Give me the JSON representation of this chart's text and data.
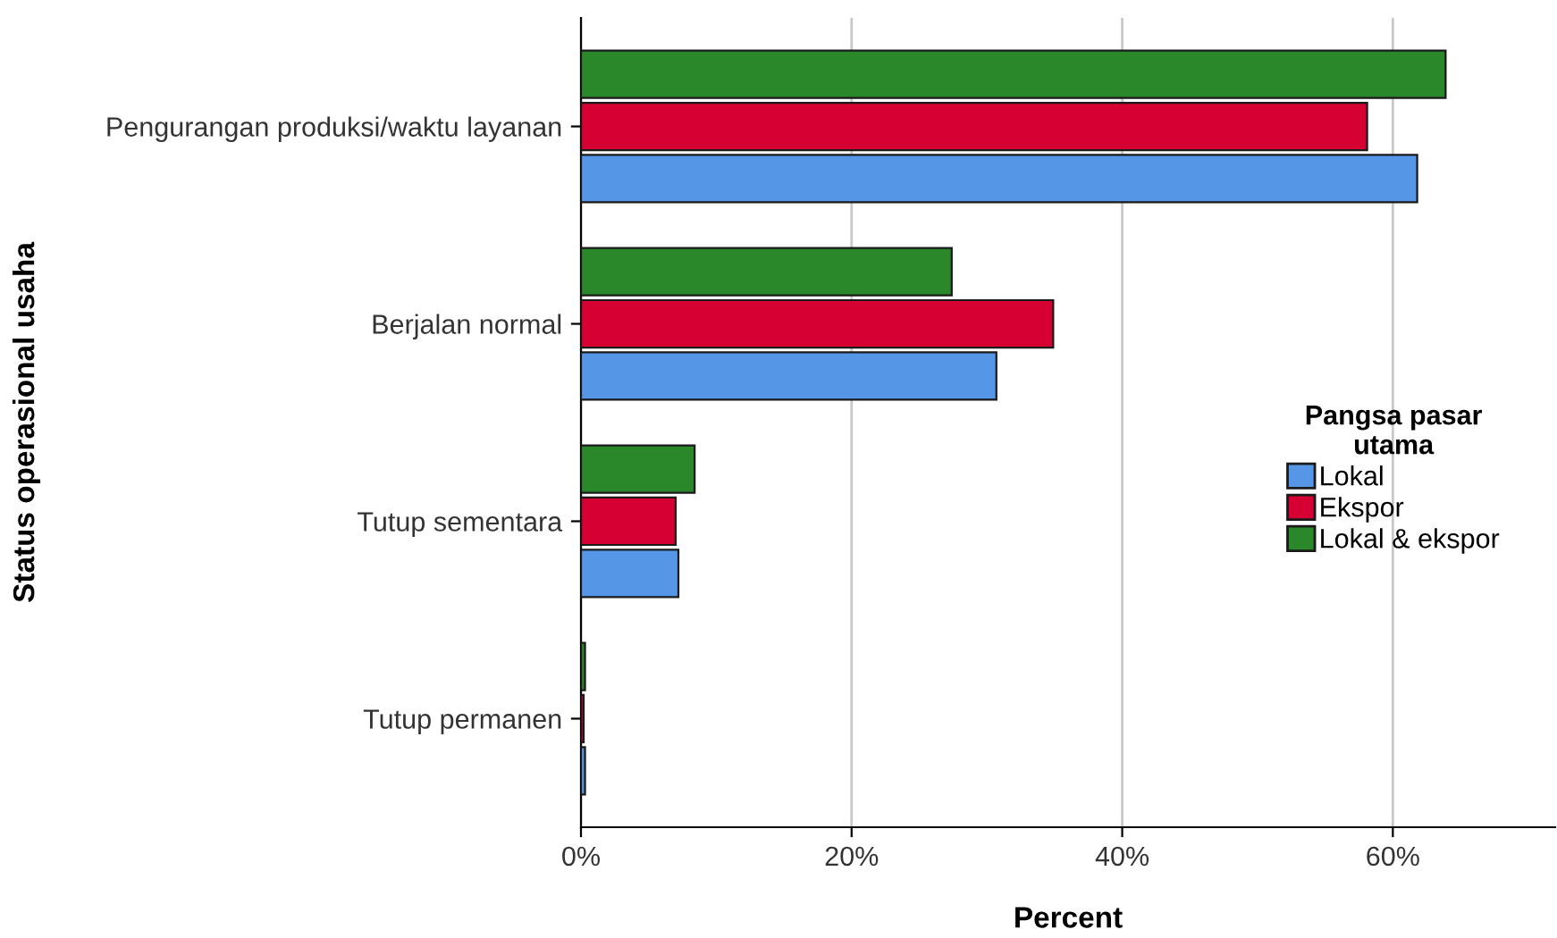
{
  "chart_data": {
    "type": "bar",
    "orientation": "horizontal",
    "xlabel": "Percent",
    "ylabel": "Status operasional usaha",
    "legend_title": "Pangsa pasar\nutama",
    "legend": "right",
    "grid": "x",
    "categories": [
      "Pengurangan produksi/waktu layanan",
      "Berjalan normal",
      "Tutup sementara",
      "Tutup permanen"
    ],
    "series": [
      {
        "name": "Lokal",
        "color": "#5596e6",
        "values": [
          61.8,
          30.7,
          7.2,
          0.3
        ]
      },
      {
        "name": "Ekspor",
        "color": "#d60032",
        "values": [
          58.1,
          34.9,
          7.0,
          0.2
        ]
      },
      {
        "name": "Lokal & ekspor",
        "color": "#2a872a",
        "values": [
          63.9,
          27.4,
          8.4,
          0.3
        ]
      }
    ],
    "xlim": [
      0,
      72
    ],
    "xticks": [
      {
        "value": 0,
        "label": "0%"
      },
      {
        "value": 20,
        "label": "20%"
      },
      {
        "value": 40,
        "label": "40%"
      },
      {
        "value": 60,
        "label": "60%"
      }
    ]
  }
}
